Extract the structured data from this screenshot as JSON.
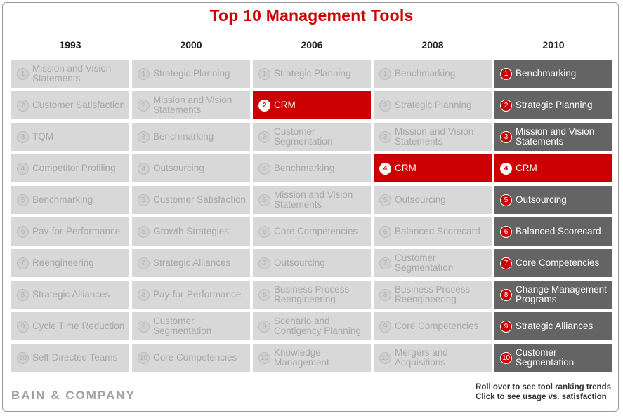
{
  "chart_data": {
    "type": "table",
    "title": "Top 10 Management Tools",
    "columns": [
      {
        "year": "1993",
        "style": "gray",
        "tools": [
          "Mission and Vision Statements",
          "Customer Satisfaction",
          "TQM",
          "Competitor Profiling",
          "Benchmarking",
          "Pay-for-Performance",
          "Reengineering",
          "Strategic Alliances",
          "Cycle Time Reduction",
          "Self-Directed Teams"
        ]
      },
      {
        "year": "2000",
        "style": "gray",
        "tools": [
          "Strategic Planning",
          "Mission and Vision Statements",
          "Benchmarking",
          "Outsourcing",
          "Customer Satisfaction",
          "Growth Strategies",
          "Strategic Alliances",
          "Pay-for-Performance",
          "Customer Segmentation",
          "Core Competencies"
        ]
      },
      {
        "year": "2006",
        "style": "gray",
        "tools": [
          "Strategic Planning",
          "CRM",
          "Customer Segmentation",
          "Benchmarking",
          "Mission and Vision Statements",
          "Core Competencies",
          "Outsourcing",
          "Business Process Reengineering",
          "Scenario and Contigency Planning",
          "Knowledge Management"
        ]
      },
      {
        "year": "2008",
        "style": "gray",
        "tools": [
          "Benchmarking",
          "Strategic Planning",
          "Mission and Vision Statements",
          "CRM",
          "Outsourcing",
          "Balanced Scorecard",
          "Customer Segmentation",
          "Business Process Reengineering",
          "Core Competencies",
          "Mergers and Acquisitions"
        ]
      },
      {
        "year": "2010",
        "style": "dark",
        "tools": [
          "Benchmarking",
          "Strategic Planning",
          "Mission and Vision Statements",
          "CRM",
          "Outsourcing",
          "Balanced Scorecard",
          "Core Competencies",
          "Change Management Programs",
          "Strategic Alliances",
          "Customer Segmentation"
        ]
      }
    ],
    "highlighted_tool": "CRM"
  },
  "footer": {
    "logo": "BAIN & COMPANY",
    "hint_line1": "Roll over to see tool ranking trends",
    "hint_line2": "Click to see usage vs. satisfaction"
  },
  "colors": {
    "title": "#cc0000",
    "highlight": "#cc0000",
    "current_year": "#646464",
    "inactive": "#d8d8d8"
  }
}
